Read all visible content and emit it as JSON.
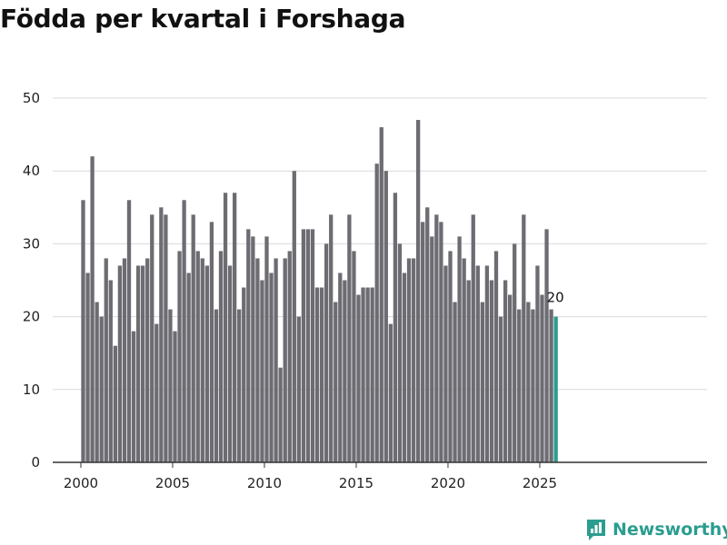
{
  "chart_data": {
    "type": "bar",
    "title": "Födda per kvartal i Forshaga",
    "xlabel": "",
    "ylabel": "",
    "ylim": [
      0,
      50
    ],
    "yticks": [
      0,
      10,
      20,
      30,
      40,
      50
    ],
    "xticks": [
      "2000",
      "2005",
      "2010",
      "2015",
      "2020",
      "2025"
    ],
    "xtick_values": [
      2000,
      2005,
      2010,
      2015,
      2020,
      2025
    ],
    "x_start_year": 2000,
    "quarters_per_year": 4,
    "values": [
      36,
      26,
      42,
      22,
      20,
      28,
      25,
      16,
      27,
      28,
      36,
      18,
      27,
      27,
      28,
      34,
      19,
      35,
      34,
      21,
      18,
      29,
      36,
      26,
      34,
      29,
      28,
      27,
      33,
      21,
      29,
      37,
      27,
      37,
      21,
      24,
      32,
      31,
      28,
      25,
      31,
      26,
      28,
      13,
      28,
      29,
      40,
      20,
      32,
      32,
      32,
      24,
      24,
      30,
      34,
      22,
      26,
      25,
      34,
      29,
      23,
      24,
      24,
      24,
      41,
      46,
      40,
      19,
      37,
      30,
      26,
      28,
      28,
      47,
      33,
      35,
      31,
      34,
      33,
      27,
      29,
      22,
      31,
      28,
      25,
      34,
      27,
      22,
      27,
      25,
      29,
      20,
      25,
      23,
      30,
      21,
      34,
      22,
      21,
      27,
      23,
      32,
      21,
      20
    ],
    "highlight_last": true,
    "last_label": "20",
    "colors": {
      "bar": "#6d6c72",
      "highlight": "#2a9d8f",
      "grid": "#d9d9d9",
      "axis": "#333333"
    },
    "grid": true
  },
  "brand": {
    "name": "Newsworthy"
  }
}
